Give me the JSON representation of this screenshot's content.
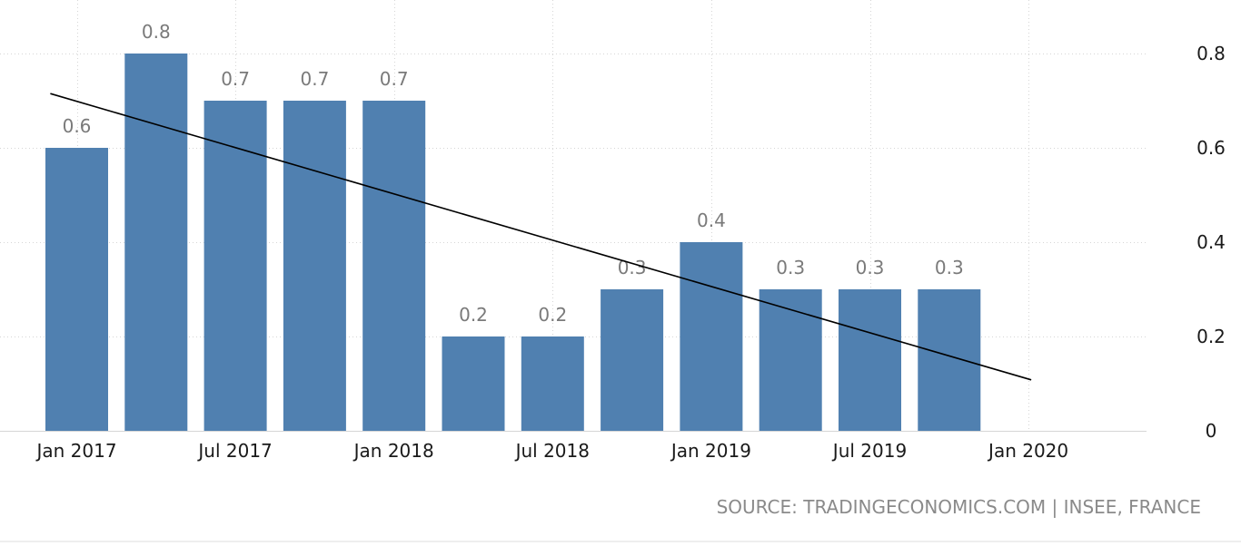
{
  "chart_data": {
    "type": "bar",
    "categories": [
      "Jan 2017",
      "Apr 2017",
      "Jul 2017",
      "Oct 2017",
      "Jan 2018",
      "Apr 2018",
      "Jul 2018",
      "Oct 2018",
      "Jan 2019",
      "Apr 2019",
      "Jul 2019",
      "Oct 2019"
    ],
    "values": [
      0.6,
      0.8,
      0.7,
      0.7,
      0.7,
      0.2,
      0.2,
      0.3,
      0.4,
      0.3,
      0.3,
      0.3
    ],
    "data_labels": [
      "0.6",
      "0.8",
      "0.7",
      "0.7",
      "0.7",
      "0.2",
      "0.2",
      "0.3",
      "0.4",
      "0.3",
      "0.3",
      "0.3"
    ],
    "x_tick_labels": [
      "Jan 2017",
      "Jul 2017",
      "Jan 2018",
      "Jul 2018",
      "Jan 2019",
      "Jul 2019",
      "Jan 2020"
    ],
    "y_ticks": [
      0,
      0.2,
      0.4,
      0.6,
      0.8
    ],
    "y_tick_labels": [
      "0",
      "0.2",
      "0.4",
      "0.6",
      "0.8"
    ],
    "ylim": [
      0,
      0.8
    ],
    "y_axis_position": "right",
    "grid": true,
    "bar_color": "#5080b0",
    "trend_line": {
      "color": "#000000",
      "start": {
        "x": "Dec 2016",
        "y": 0.715
      },
      "end": {
        "x": "Jan 2020",
        "y": 0.108
      }
    },
    "source": "SOURCE: TRADINGECONOMICS.COM | INSEE, FRANCE"
  }
}
